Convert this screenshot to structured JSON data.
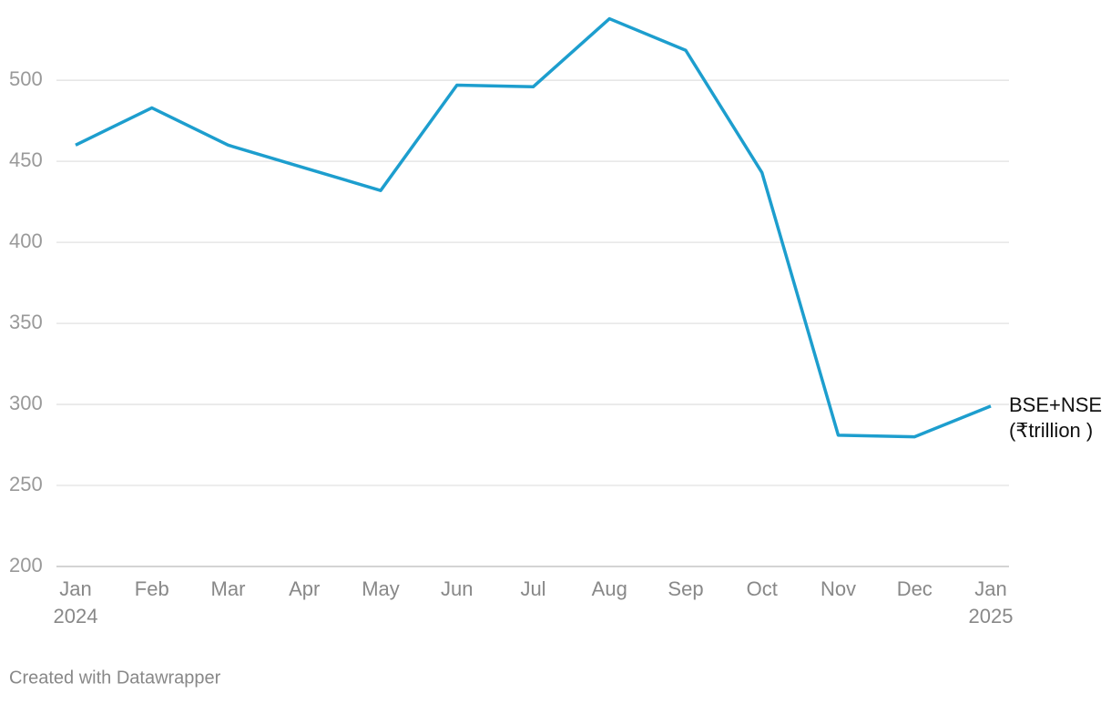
{
  "chart_data": {
    "type": "line",
    "categories": [
      "Jan 2024",
      "Feb",
      "Mar",
      "Apr",
      "May",
      "Jun",
      "Jul",
      "Aug",
      "Sep",
      "Oct",
      "Nov",
      "Dec",
      "Jan 2025"
    ],
    "series": [
      {
        "name": "BSE+NSE (₹trillion )",
        "color": "#1d9ece",
        "values": [
          460,
          483,
          460,
          446,
          432,
          497,
          496,
          538,
          518.5,
          443,
          281,
          280,
          299
        ]
      }
    ],
    "ylim": [
      200,
      540
    ],
    "yticks": [
      200,
      250,
      300,
      350,
      400,
      450,
      500
    ],
    "grid": true,
    "footer": "Created with Datawrapper"
  }
}
